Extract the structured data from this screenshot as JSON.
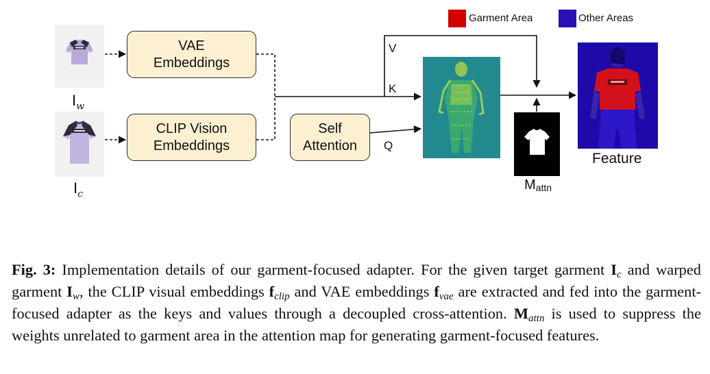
{
  "legend": {
    "garment_color": "#d00000",
    "garment_label": "Garment Area",
    "other_color": "#2a10b8",
    "other_label": "Other Areas"
  },
  "inputs": {
    "warped_label": "I",
    "warped_sub": "w",
    "target_label": "I",
    "target_sub": "c"
  },
  "blocks": {
    "vae_line1": "VAE",
    "vae_line2": "Embeddings",
    "clip_line1": "CLIP Vision",
    "clip_line2": "Embeddings",
    "self_line1": "Self",
    "self_line2": "Attention"
  },
  "edges": {
    "v": "V",
    "k": "K",
    "q": "Q"
  },
  "mask": {
    "label": "M",
    "sub": "attn"
  },
  "output": {
    "label": "Feature"
  },
  "caption": {
    "fig_label": "Fig. 3:",
    "part1": " Implementation details of our garment-focused adapter. For the given target garment ",
    "ic_sym": "I",
    "ic_sub": "c",
    "part2": " and warped garment ",
    "iw_sym": "I",
    "iw_sub": "w",
    "part3": ", the CLIP visual embeddings ",
    "fclip_sym": "f",
    "fclip_sub": "clip",
    "part4": " and VAE embeddings ",
    "fvae_sym": "f",
    "fvae_sub": "vae",
    "part5": " are extracted and fed into the garment-focused adapter as the keys and values through a decoupled cross-attention. ",
    "mattn_sym": "M",
    "mattn_sub": "attn",
    "part6": " is used to suppress the weights unrelated to garment area in the attention map for generating garment-focused features."
  }
}
